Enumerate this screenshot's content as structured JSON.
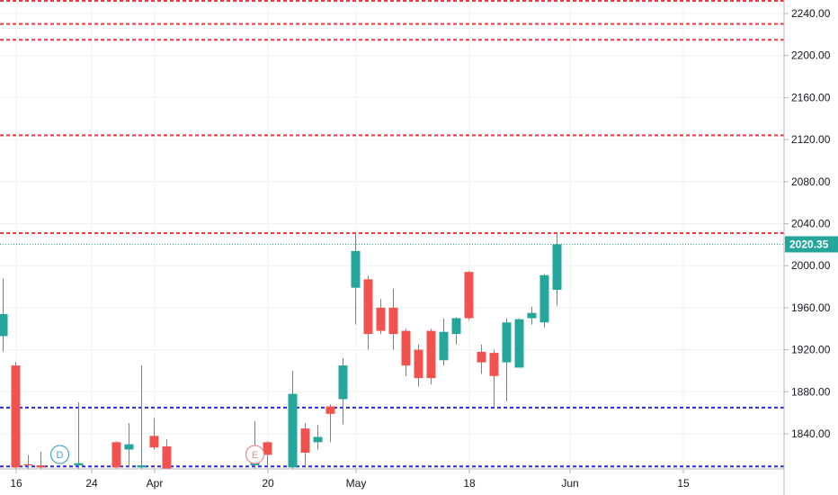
{
  "chart_data": {
    "type": "candlestick",
    "title": "",
    "xlabel": "",
    "ylabel": "",
    "ylim": [
      1807,
      2252
    ],
    "grid": true,
    "y_ticks": [
      "2240.00",
      "2200.00",
      "2160.00",
      "2120.00",
      "2080.00",
      "2040.00",
      "2000.00",
      "1960.00",
      "1920.00",
      "1880.00",
      "1840.00"
    ],
    "x_ticks": [
      {
        "label": "16",
        "bar": 1
      },
      {
        "label": "24",
        "bar": 7
      },
      {
        "label": "Apr",
        "bar": 12
      },
      {
        "label": "20",
        "bar": 21
      },
      {
        "label": "May",
        "bar": 28
      },
      {
        "label": "18",
        "bar": 37
      },
      {
        "label": "Jun",
        "bar": 45
      },
      {
        "label": "15",
        "bar": 54
      }
    ],
    "candles": [
      {
        "bar": 0,
        "open": 1933,
        "high": 1988,
        "low": 1918,
        "close": 1954
      },
      {
        "bar": 1,
        "open": 1905,
        "high": 1908,
        "low": 1803,
        "close": 1808
      },
      {
        "bar": 2,
        "open": 1811,
        "high": 1820,
        "low": 1805,
        "close": 1810
      },
      {
        "bar": 3,
        "open": 1810,
        "high": 1823,
        "low": 1805,
        "close": 1808
      },
      {
        "bar": 6,
        "open": 1810,
        "high": 1870,
        "low": 1805,
        "close": 1812
      },
      {
        "bar": 9,
        "open": 1832,
        "high": 1833,
        "low": 1805,
        "close": 1808
      },
      {
        "bar": 10,
        "open": 1825,
        "high": 1850,
        "low": 1808,
        "close": 1830
      },
      {
        "bar": 11,
        "open": 1808,
        "high": 1905,
        "low": 1805,
        "close": 1810
      },
      {
        "bar": 12,
        "open": 1838,
        "high": 1855,
        "low": 1825,
        "close": 1827
      },
      {
        "bar": 13,
        "open": 1828,
        "high": 1835,
        "low": 1805,
        "close": 1807
      },
      {
        "bar": 20,
        "open": 1810,
        "high": 1852,
        "low": 1805,
        "close": 1815
      },
      {
        "bar": 21,
        "open": 1832,
        "high": 1833,
        "low": 1810,
        "close": 1820
      },
      {
        "bar": 23,
        "open": 1808,
        "high": 1900,
        "low": 1805,
        "close": 1878
      },
      {
        "bar": 24,
        "open": 1845,
        "high": 1850,
        "low": 1810,
        "close": 1822
      },
      {
        "bar": 25,
        "open": 1832,
        "high": 1848,
        "low": 1825,
        "close": 1837
      },
      {
        "bar": 26,
        "open": 1866,
        "high": 1868,
        "low": 1832,
        "close": 1859
      },
      {
        "bar": 27,
        "open": 1873,
        "high": 1912,
        "low": 1849,
        "close": 1905
      },
      {
        "bar": 28,
        "open": 1979,
        "high": 2032,
        "low": 1944,
        "close": 2014
      },
      {
        "bar": 29,
        "open": 1987,
        "high": 1990,
        "low": 1920,
        "close": 1935
      },
      {
        "bar": 30,
        "open": 1960,
        "high": 1968,
        "low": 1935,
        "close": 1938
      },
      {
        "bar": 31,
        "open": 1960,
        "high": 1978,
        "low": 1920,
        "close": 1935
      },
      {
        "bar": 32,
        "open": 1938,
        "high": 1940,
        "low": 1895,
        "close": 1905
      },
      {
        "bar": 33,
        "open": 1920,
        "high": 1925,
        "low": 1885,
        "close": 1893
      },
      {
        "bar": 34,
        "open": 1938,
        "high": 1940,
        "low": 1887,
        "close": 1893
      },
      {
        "bar": 35,
        "open": 1910,
        "high": 1950,
        "low": 1905,
        "close": 1937
      },
      {
        "bar": 36,
        "open": 1935,
        "high": 1951,
        "low": 1925,
        "close": 1950
      },
      {
        "bar": 37,
        "open": 1994,
        "high": 1995,
        "low": 1948,
        "close": 1950
      },
      {
        "bar": 38,
        "open": 1918,
        "high": 1925,
        "low": 1897,
        "close": 1908
      },
      {
        "bar": 39,
        "open": 1917,
        "high": 1920,
        "low": 1866,
        "close": 1895
      },
      {
        "bar": 40,
        "open": 1908,
        "high": 1950,
        "low": 1871,
        "close": 1946
      },
      {
        "bar": 41,
        "open": 1903,
        "high": 1950,
        "low": 1903,
        "close": 1949
      },
      {
        "bar": 42,
        "open": 1950,
        "high": 1961,
        "low": 1944,
        "close": 1955
      },
      {
        "bar": 43,
        "open": 1946,
        "high": 1992,
        "low": 1941,
        "close": 1991
      },
      {
        "bar": 44,
        "open": 1977,
        "high": 2032,
        "low": 1962,
        "close": 2020.35
      }
    ],
    "horizontal_lines": [
      {
        "price": 2252,
        "color": "#f23645"
      },
      {
        "price": 2230,
        "color": "#f23645"
      },
      {
        "price": 2215,
        "color": "#f23645"
      },
      {
        "price": 2124,
        "color": "#f23645"
      },
      {
        "price": 2031,
        "color": "#f23645"
      },
      {
        "price": 1865,
        "color": "#2a2ad6"
      },
      {
        "price": 1809,
        "color": "#2a2ad6"
      }
    ],
    "last_price": {
      "value": 2020.35,
      "label": "2020.35",
      "color": "#26a69a"
    },
    "event_markers": [
      {
        "label": "D",
        "bar": 4.5,
        "color": "#4aa8c9"
      },
      {
        "label": "E",
        "bar": 20,
        "color": "#e88f8f"
      }
    ],
    "colors": {
      "up": "#26a69a",
      "down": "#ef5350",
      "grid": "#edf0f4",
      "axis_text": "#131722"
    }
  }
}
